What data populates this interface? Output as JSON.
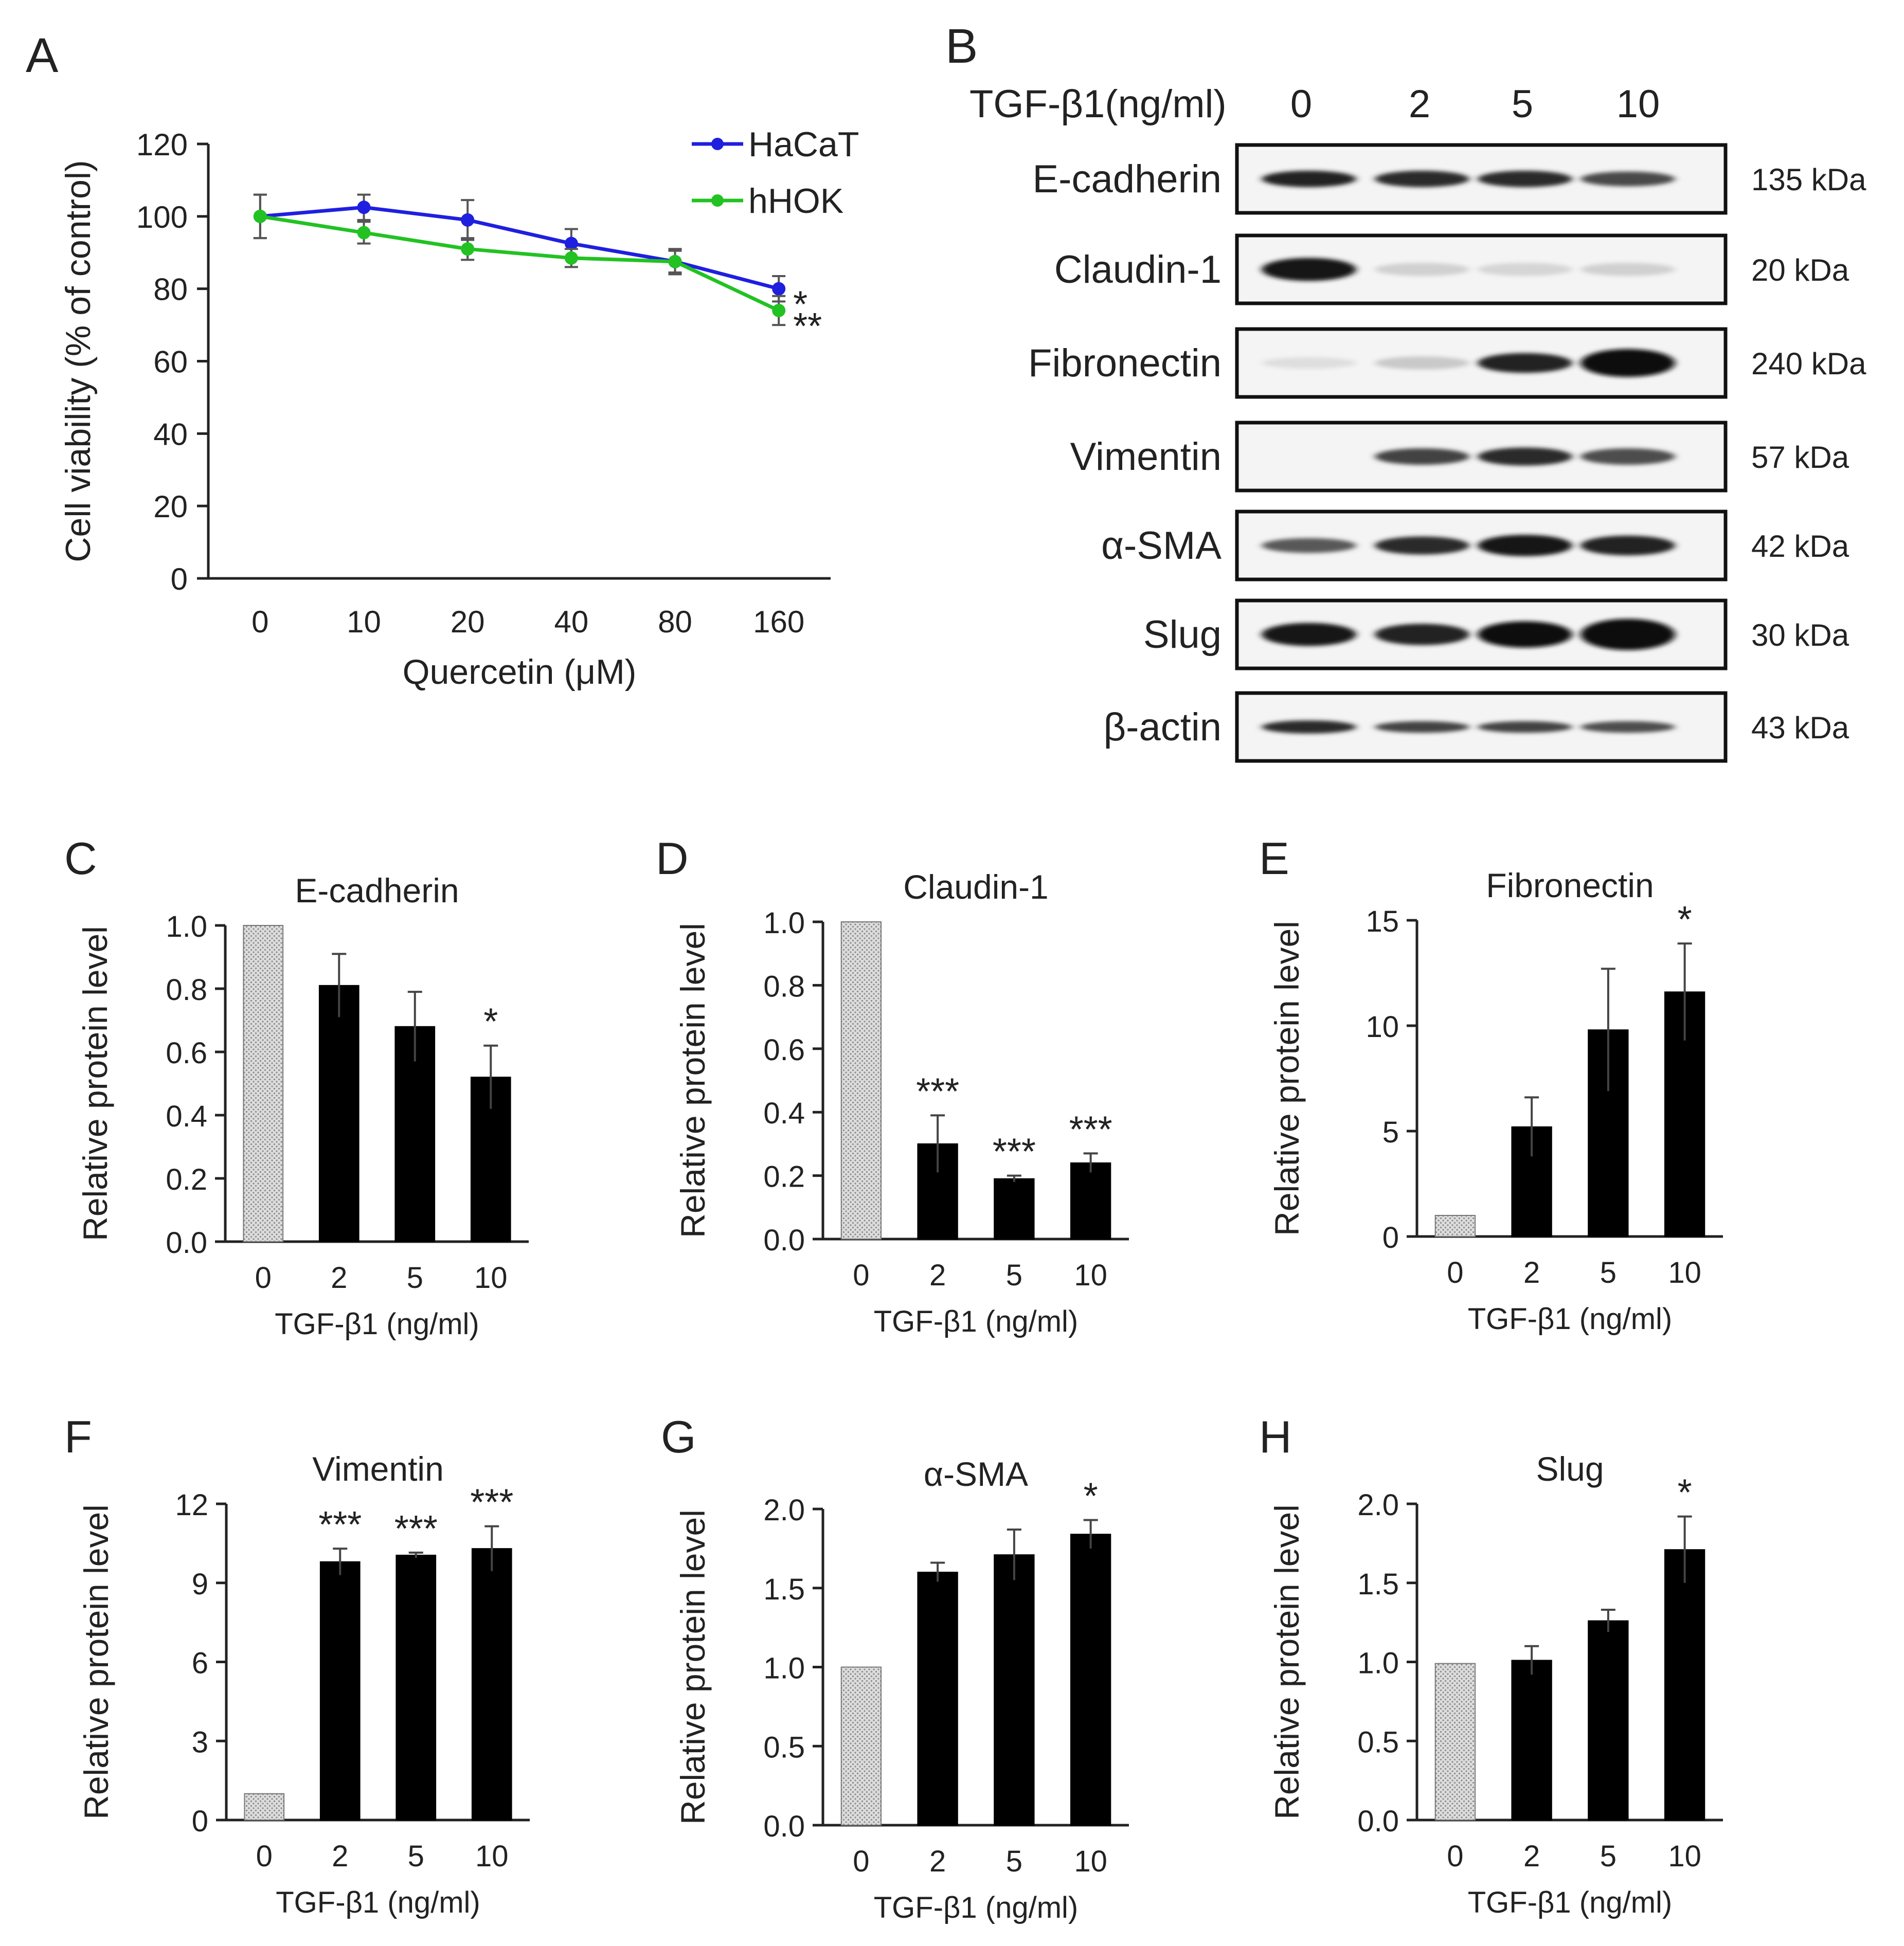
{
  "panels": {
    "A": {
      "letter": "A",
      "chart_data": {
        "type": "line",
        "title": "",
        "xlabel": "Quercetin (μM)",
        "ylabel": "Cell viability (% of control)",
        "categories": [
          "0",
          "10",
          "20",
          "40",
          "80",
          "160"
        ],
        "ylim": [
          0,
          120
        ],
        "yticks": [
          0,
          20,
          40,
          60,
          80,
          100,
          120
        ],
        "series": [
          {
            "name": "HaCaT",
            "color": "#1f1fe0",
            "values": [
              100,
              102.5,
              99,
              92.5,
              87.5,
              80
            ],
            "errors": [
              6,
              3.5,
              5.5,
              4,
              3.5,
              3.5
            ]
          },
          {
            "name": "hHOK",
            "color": "#22c222",
            "values": [
              100,
              95.5,
              91,
              88.5,
              87.5,
              74
            ],
            "errors": [
              6,
              3,
              3,
              2.5,
              3,
              4
            ]
          }
        ],
        "significance": [
          "*",
          "**"
        ],
        "legend": "top-right"
      }
    },
    "B": {
      "letter": "B",
      "treatment_label": "TGF-β1(ng/ml)",
      "doses": [
        "0",
        "2",
        "5",
        "10"
      ],
      "rows": [
        {
          "protein": "E-cadherin",
          "kda": "135 kDa",
          "intensity": [
            0.9,
            0.85,
            0.85,
            0.72
          ],
          "thickness": [
            1,
            1,
            1,
            0.9
          ]
        },
        {
          "protein": "Claudin-1",
          "kda": "20 kDa",
          "intensity": [
            0.95,
            0.12,
            0.1,
            0.12
          ],
          "thickness": [
            1.4,
            0.8,
            0.8,
            0.8
          ]
        },
        {
          "protein": "Fibronectin",
          "kda": "240 kDa",
          "intensity": [
            0.06,
            0.15,
            0.9,
            0.98
          ],
          "thickness": [
            0.7,
            0.8,
            1.2,
            1.7
          ]
        },
        {
          "protein": "Vimentin",
          "kda": "57 kDa",
          "intensity": [
            0,
            0.75,
            0.85,
            0.7
          ],
          "thickness": [
            0.7,
            1,
            1.1,
            1
          ]
        },
        {
          "protein": "α-SMA",
          "kda": "42 kDa",
          "intensity": [
            0.65,
            0.85,
            0.95,
            0.9
          ],
          "thickness": [
            0.9,
            1.1,
            1.3,
            1.2
          ]
        },
        {
          "protein": "Slug",
          "kda": "30 kDa",
          "intensity": [
            0.95,
            0.9,
            0.97,
            0.98
          ],
          "thickness": [
            1.4,
            1.3,
            1.6,
            1.9
          ]
        },
        {
          "protein": "β-actin",
          "kda": "43 kDa",
          "intensity": [
            0.85,
            0.75,
            0.75,
            0.7
          ],
          "thickness": [
            0.8,
            0.7,
            0.7,
            0.7
          ]
        }
      ]
    },
    "C": {
      "letter": "C",
      "chart_data": {
        "type": "bar",
        "title": "E-cadherin",
        "xlabel": "TGF-β1 (ng/ml)",
        "ylabel": "Relative protein level",
        "categories": [
          "0",
          "2",
          "5",
          "10"
        ],
        "values": [
          1.0,
          0.81,
          0.68,
          0.52
        ],
        "errors": [
          0,
          0.1,
          0.11,
          0.1
        ],
        "significance": [
          "",
          "",
          "",
          "*"
        ],
        "ylim": [
          0,
          1.0
        ],
        "yticks": [
          "0.0",
          "0.2",
          "0.4",
          "0.6",
          "0.8",
          "1.0"
        ]
      }
    },
    "D": {
      "letter": "D",
      "chart_data": {
        "type": "bar",
        "title": "Claudin-1",
        "xlabel": "TGF-β1 (ng/ml)",
        "ylabel": "Relative protein level",
        "categories": [
          "0",
          "2",
          "5",
          "10"
        ],
        "values": [
          1.0,
          0.3,
          0.19,
          0.24
        ],
        "errors": [
          0,
          0.09,
          0.01,
          0.03
        ],
        "significance": [
          "",
          "***",
          "***",
          "***"
        ],
        "ylim": [
          0,
          1.0
        ],
        "yticks": [
          "0.0",
          "0.2",
          "0.4",
          "0.6",
          "0.8",
          "1.0"
        ]
      }
    },
    "E": {
      "letter": "E",
      "chart_data": {
        "type": "bar",
        "title": "Fibronectin",
        "xlabel": "TGF-β1 (ng/ml)",
        "ylabel": "Relative protein level",
        "categories": [
          "0",
          "2",
          "5",
          "10"
        ],
        "values": [
          1.0,
          5.2,
          9.8,
          11.6
        ],
        "errors": [
          0,
          1.4,
          2.9,
          2.3
        ],
        "significance": [
          "",
          "",
          "",
          "*"
        ],
        "ylim": [
          0,
          15
        ],
        "yticks": [
          "0",
          "5",
          "10",
          "15"
        ]
      }
    },
    "F": {
      "letter": "F",
      "chart_data": {
        "type": "bar",
        "title": "Vimentin",
        "xlabel": "TGF-β1 (ng/ml)",
        "ylabel": "Relative protein level",
        "categories": [
          "0",
          "2",
          "5",
          "10"
        ],
        "values": [
          1.0,
          9.8,
          10.05,
          10.3
        ],
        "errors": [
          0,
          0.5,
          0.1,
          0.85
        ],
        "significance": [
          "",
          "***",
          "***",
          "***"
        ],
        "ylim": [
          0,
          12
        ],
        "yticks": [
          "0",
          "3",
          "6",
          "9",
          "12"
        ]
      }
    },
    "G": {
      "letter": "G",
      "chart_data": {
        "type": "bar",
        "title": "α-SMA",
        "xlabel": "TGF-β1 (ng/ml)",
        "ylabel": "Relative protein level",
        "categories": [
          "0",
          "2",
          "5",
          "10"
        ],
        "values": [
          1.0,
          1.6,
          1.71,
          1.84
        ],
        "errors": [
          0,
          0.06,
          0.16,
          0.09
        ],
        "significance": [
          "",
          "",
          "",
          "*"
        ],
        "ylim": [
          0,
          2.0
        ],
        "yticks": [
          "0.0",
          "0.5",
          "1.0",
          "1.5",
          "2.0"
        ]
      }
    },
    "H": {
      "letter": "H",
      "chart_data": {
        "type": "bar",
        "title": "Slug",
        "xlabel": "TGF-β1 (ng/ml)",
        "ylabel": "Relative protein level",
        "categories": [
          "0",
          "2",
          "5",
          "10"
        ],
        "values": [
          0.99,
          1.01,
          1.26,
          1.71
        ],
        "errors": [
          0,
          0.09,
          0.07,
          0.21
        ],
        "significance": [
          "",
          "",
          "",
          "*"
        ],
        "ylim": [
          0,
          2.0
        ],
        "yticks": [
          "0.0",
          "0.5",
          "1.0",
          "1.5",
          "2.0"
        ]
      }
    }
  },
  "colors": {
    "control_bar": "#d4d4d4",
    "treated_bar": "#000000",
    "axis": "#222222"
  }
}
